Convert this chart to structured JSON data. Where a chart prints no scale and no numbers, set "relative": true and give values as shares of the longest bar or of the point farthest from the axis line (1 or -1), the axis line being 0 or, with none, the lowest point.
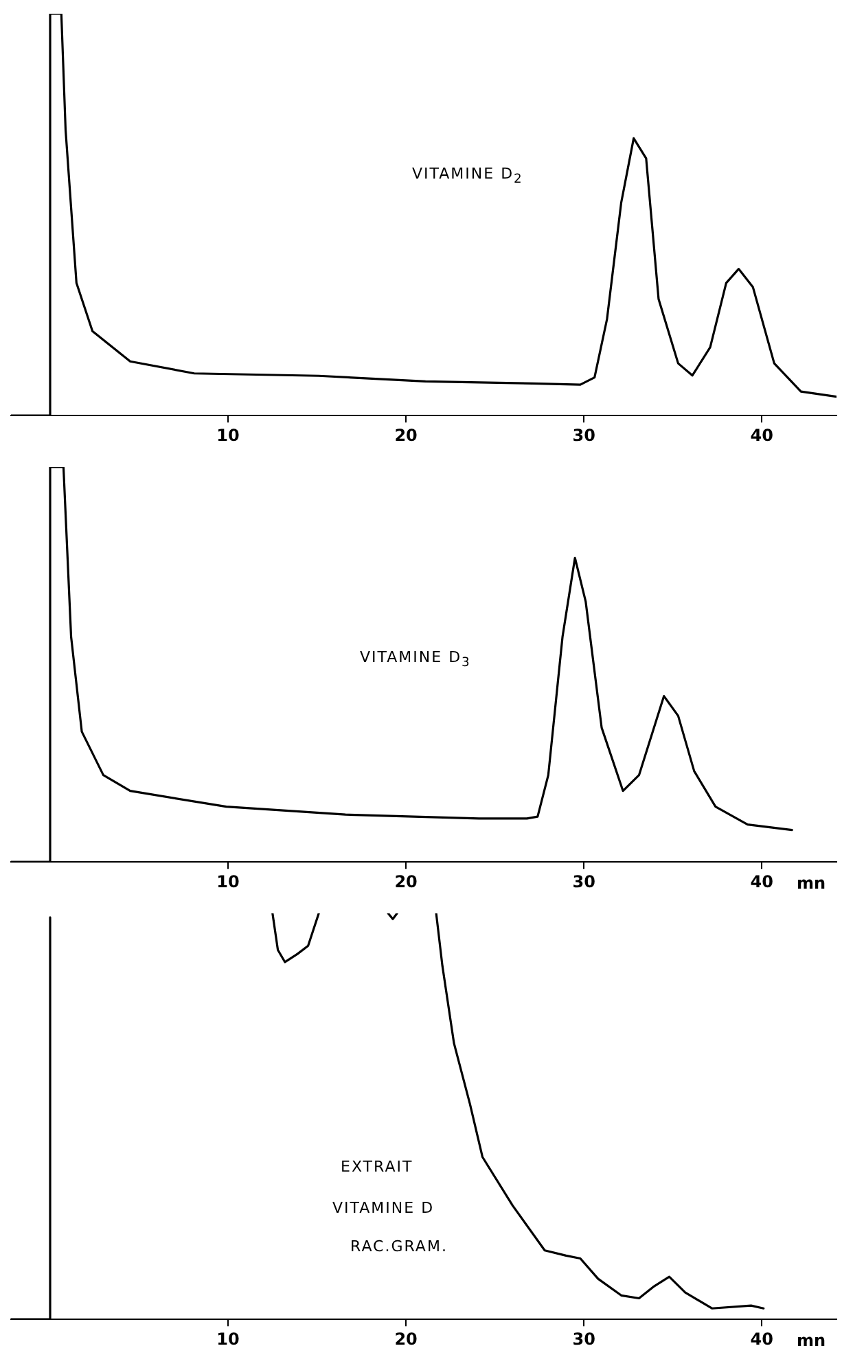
{
  "chart_data": [
    {
      "type": "line",
      "relative": true,
      "annotations": [
        "VITAMINE D$_{2}$"
      ],
      "xlim": [
        -2.2,
        44.2
      ],
      "xticks": [
        10,
        20,
        30,
        40
      ],
      "legend": false,
      "grid": false,
      "marker": "none",
      "line_style": "solid",
      "tick_labels": "x",
      "series": [
        {
          "color": "#000000",
          "x": [
            -2.2,
            0,
            0,
            0.63,
            0.87,
            1.48,
            2.38,
            4.5,
            8.1,
            15.1,
            21.1,
            27.1,
            29.8,
            30.6,
            31.3,
            32.1,
            32.8,
            33.5,
            34.2,
            35.3,
            36.1,
            37.1,
            38.0,
            38.7,
            39.5,
            40.7,
            42.2,
            44.2
          ],
          "values": [
            0,
            0,
            1,
            1,
            0.71,
            0.33,
            0.21,
            0.135,
            0.105,
            0.099,
            0.085,
            0.08,
            0.077,
            0.095,
            0.24,
            0.53,
            0.69,
            0.64,
            0.29,
            0.13,
            0.1,
            0.17,
            0.33,
            0.365,
            0.32,
            0.13,
            0.06,
            0.047
          ]
        }
      ]
    },
    {
      "type": "line",
      "relative": true,
      "annotations": [
        "VITAMINE D$_{3}$"
      ],
      "xlabel": "mn",
      "xlim": [
        -2.2,
        44.2
      ],
      "xticks": [
        10,
        20,
        30,
        40
      ],
      "legend": false,
      "grid": false,
      "marker": "none",
      "line_style": "solid",
      "tick_labels": "x",
      "series": [
        {
          "color": "#000000",
          "x": [
            -2.2,
            0,
            0,
            0.75,
            1.18,
            1.78,
            2.99,
            4.5,
            9.9,
            16.6,
            24.1,
            26.8,
            27.4,
            28.0,
            28.8,
            29.5,
            30.1,
            31.0,
            32.2,
            33.1,
            34.5,
            35.3,
            36.2,
            37.4,
            39.2,
            41.7
          ],
          "values": [
            0,
            0,
            1,
            1,
            0.57,
            0.33,
            0.22,
            0.18,
            0.14,
            0.12,
            0.11,
            0.11,
            0.115,
            0.22,
            0.57,
            0.77,
            0.66,
            0.34,
            0.18,
            0.22,
            0.42,
            0.37,
            0.23,
            0.14,
            0.095,
            0.081
          ]
        }
      ]
    },
    {
      "type": "line",
      "relative": true,
      "annotations": [
        "EXTRAIT",
        "VITAMINE D",
        "RAC.GRAM."
      ],
      "xlabel": "mn",
      "xlim": [
        -2.2,
        44.2
      ],
      "xticks": [
        10,
        20,
        30,
        40
      ],
      "legend": false,
      "grid": false,
      "marker": "none",
      "line_style": "solid",
      "tick_labels": "x",
      "series": [
        {
          "color": "#000000",
          "x": [
            -2.2,
            0,
            0,
            5,
            12.5,
            12.8,
            13.2,
            13.9,
            14.5,
            15.1,
            17,
            19.0,
            19.26,
            19.5,
            20.5,
            21.7,
            22.05,
            22.7,
            23.6,
            24.3,
            26.0,
            27.8,
            29.0,
            29.8,
            30.8,
            32.1,
            33.1,
            33.9,
            34.8,
            35.7,
            37.2,
            39.4,
            40.1
          ],
          "values": [
            0,
            0,
            0.99,
            null,
            1,
            0.91,
            0.88,
            0.9,
            0.92,
            1,
            null,
            1,
            0.986,
            1,
            null,
            1,
            0.87,
            0.68,
            0.53,
            0.4,
            0.28,
            0.17,
            0.157,
            0.15,
            0.1,
            0.059,
            0.052,
            0.08,
            0.105,
            0.066,
            0.027,
            0.034,
            0.027
          ]
        }
      ]
    }
  ]
}
